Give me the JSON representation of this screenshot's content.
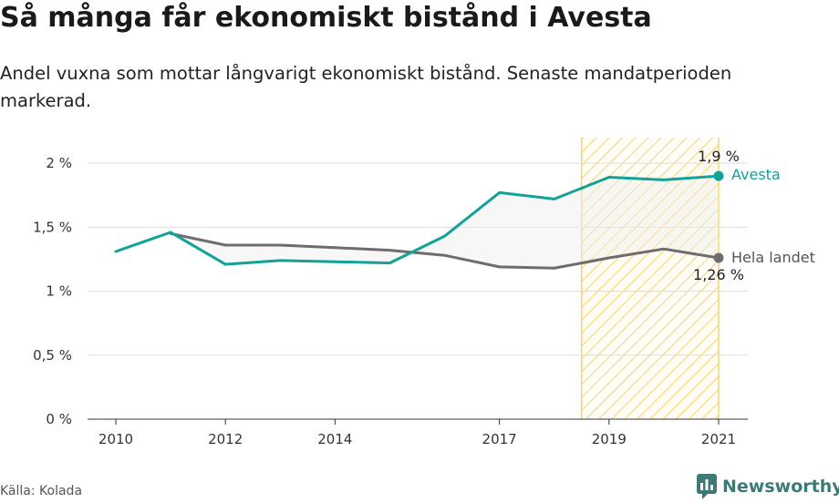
{
  "header": {
    "title": "Så många får ekonomiskt bistånd i Avesta",
    "subtitle": "Andel vuxna som mottar långvarigt ekonomiskt bistånd. Senaste mandatperioden markerad."
  },
  "footer": {
    "source": "Källa: Kolada",
    "brand": "Newsworthy"
  },
  "chart_data": {
    "type": "line",
    "x": [
      2010,
      2011,
      2012,
      2013,
      2014,
      2015,
      2016,
      2017,
      2018,
      2019,
      2020,
      2021
    ],
    "series": [
      {
        "name": "Avesta",
        "color": "#12a297",
        "values": [
          1.31,
          1.46,
          1.21,
          1.24,
          1.23,
          1.22,
          1.43,
          1.77,
          1.72,
          1.89,
          1.87,
          1.9
        ]
      },
      {
        "name": "Hela landet",
        "color": "#6f6b70",
        "values": [
          null,
          1.45,
          1.36,
          1.36,
          1.34,
          1.32,
          1.28,
          1.19,
          1.18,
          1.26,
          1.33,
          1.26
        ]
      }
    ],
    "end_labels": [
      "1,9 %",
      "1,26 %"
    ],
    "xticks": [
      2010,
      2012,
      2014,
      2017,
      2019,
      2021
    ],
    "xtick_labels": [
      "2010",
      "2012",
      "2014",
      "2017",
      "2019",
      "2021"
    ],
    "yticks": [
      0,
      0.5,
      1,
      1.5,
      2
    ],
    "ytick_labels": [
      "0 %",
      "0,5 %",
      "1 %",
      "1,5 %",
      "2 %"
    ],
    "ylim": [
      0,
      2.2
    ],
    "xlim": [
      2010,
      2021
    ],
    "highlight_range": [
      2018.5,
      2021
    ],
    "highlight_color": "#f6c94a",
    "grid": "horizontal",
    "title": "Så många får ekonomiskt bistånd i Avesta"
  }
}
